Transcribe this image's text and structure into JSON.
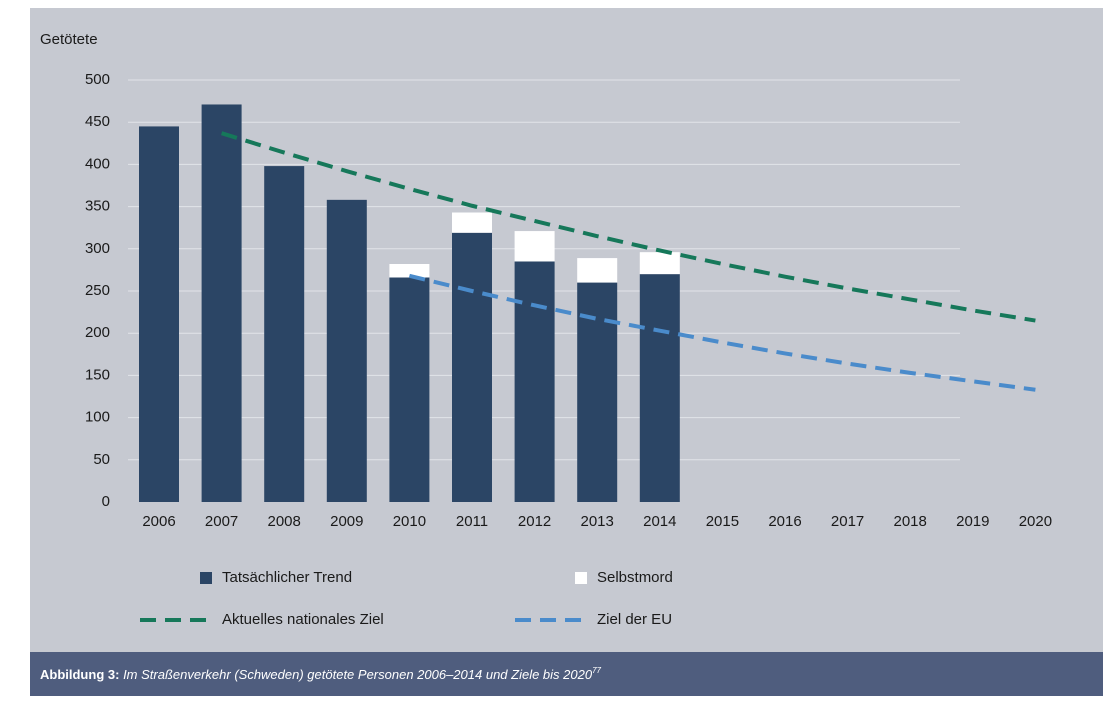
{
  "chart_data": {
    "type": "bar",
    "y_label": "Getötete",
    "categories": [
      "2006",
      "2007",
      "2008",
      "2009",
      "2010",
      "2011",
      "2012",
      "2013",
      "2014",
      "2015",
      "2016",
      "2017",
      "2018",
      "2019",
      "2020"
    ],
    "series": [
      {
        "name": "Tatsächlicher Trend",
        "type": "bar",
        "color": "#2b4565",
        "values": [
          445,
          471,
          398,
          358,
          266,
          319,
          285,
          260,
          270,
          null,
          null,
          null,
          null,
          null,
          null
        ]
      },
      {
        "name": "Selbstmord",
        "type": "bar",
        "color": "#ffffff",
        "values": [
          null,
          null,
          null,
          null,
          16,
          24,
          36,
          29,
          26,
          null,
          null,
          null,
          null,
          null,
          null
        ]
      },
      {
        "name": "Aktuelles nationales Ziel",
        "type": "line",
        "color": "#16785a",
        "dashed": true,
        "values": [
          null,
          437,
          414,
          392,
          371,
          351,
          333,
          315,
          298,
          282,
          267,
          253,
          240,
          227,
          215
        ]
      },
      {
        "name": "Ziel der EU",
        "type": "line",
        "color": "#4a8bcb",
        "dashed": true,
        "values": [
          null,
          null,
          null,
          null,
          268,
          250,
          233,
          217,
          203,
          189,
          176,
          164,
          153,
          143,
          133
        ]
      }
    ],
    "ylim": [
      0,
      500
    ],
    "yticks": [
      0,
      50,
      100,
      150,
      200,
      250,
      300,
      350,
      400,
      450,
      500
    ],
    "grid": true,
    "stacked": true,
    "caption_label": "Abbildung 3:",
    "caption_text": "Im Straßenverkehr (Schweden) getötete Personen 2006–2014 und Ziele bis 2020",
    "caption_note": "77"
  }
}
